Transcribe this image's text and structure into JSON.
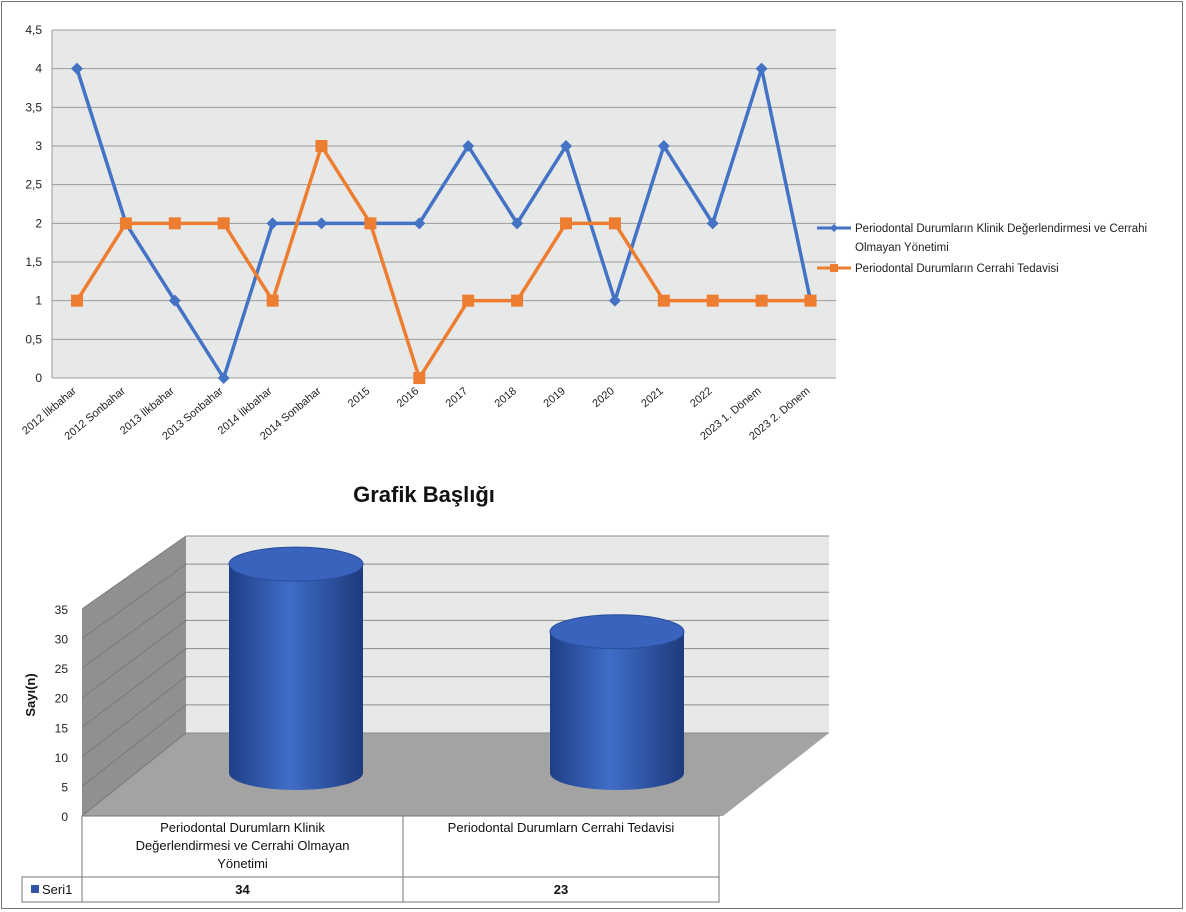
{
  "colors": {
    "series1": "#4472c4",
    "series2": "#ed7d31",
    "plot_bg": "#e7e9e8",
    "grid": "#9b9b9b",
    "cylinder": "#2f55a4",
    "floor": "#a3a3a3",
    "wall": "#cdcecd"
  },
  "chart_data": [
    {
      "type": "line",
      "categories": [
        "2012 İlkbahar",
        "2012 Sonbahar",
        "2013 İlkbahar",
        "2013 Sonbahar",
        "2014 İlkbahar",
        "2014 Sonbahar",
        "2015",
        "2016",
        "2017",
        "2018",
        "2019",
        "2020",
        "2021",
        "2022",
        "2023 1. Dönem",
        "2023 2. Dönem"
      ],
      "yticks": [
        "0",
        "0,5",
        "1",
        "1,5",
        "2",
        "2,5",
        "3",
        "3,5",
        "4",
        "4,5"
      ],
      "ylim": [
        0,
        4.5
      ],
      "grid": true,
      "legend_position": "right",
      "series": [
        {
          "name": "Periodontal Durumların Klinik Değerlendirmesi ve Cerrahi Olmayan Yönetimi",
          "legend_lines": [
            "Periodontal Durumların Klinik Değerlendirmesi ve Cerrahi",
            "Olmayan Yönetimi"
          ],
          "marker": "diamond",
          "values": [
            4,
            2,
            1,
            0,
            2,
            2,
            2,
            2,
            3,
            2,
            3,
            1,
            3,
            2,
            4,
            1
          ]
        },
        {
          "name": "Periodontal Durumların Cerrahi Tedavisi",
          "legend_lines": [
            "Periodontal Durumların Cerrahi Tedavisi"
          ],
          "marker": "square",
          "values": [
            1,
            2,
            2,
            2,
            1,
            3,
            2,
            0,
            1,
            1,
            2,
            2,
            1,
            1,
            1,
            1
          ]
        }
      ]
    },
    {
      "type": "bar",
      "title": "Grafik Başlığı",
      "ylabel": "Sayı(n)",
      "yticks": [
        "0",
        "5",
        "10",
        "15",
        "20",
        "25",
        "30",
        "35"
      ],
      "ylim": [
        0,
        35
      ],
      "grid": true,
      "categories": [
        [
          "Periodontal Durumlarn Klinik",
          "Değerlendirmesi ve Cerrahi Olmayan",
          "Yönetimi"
        ],
        [
          "Periodontal Durumlarn Cerrahi Tedavisi"
        ]
      ],
      "series": [
        {
          "name": "Seri1",
          "values": [
            34,
            23
          ]
        }
      ],
      "data_table": {
        "row_label": "Seri1",
        "cells": [
          "34",
          "23"
        ]
      }
    }
  ]
}
